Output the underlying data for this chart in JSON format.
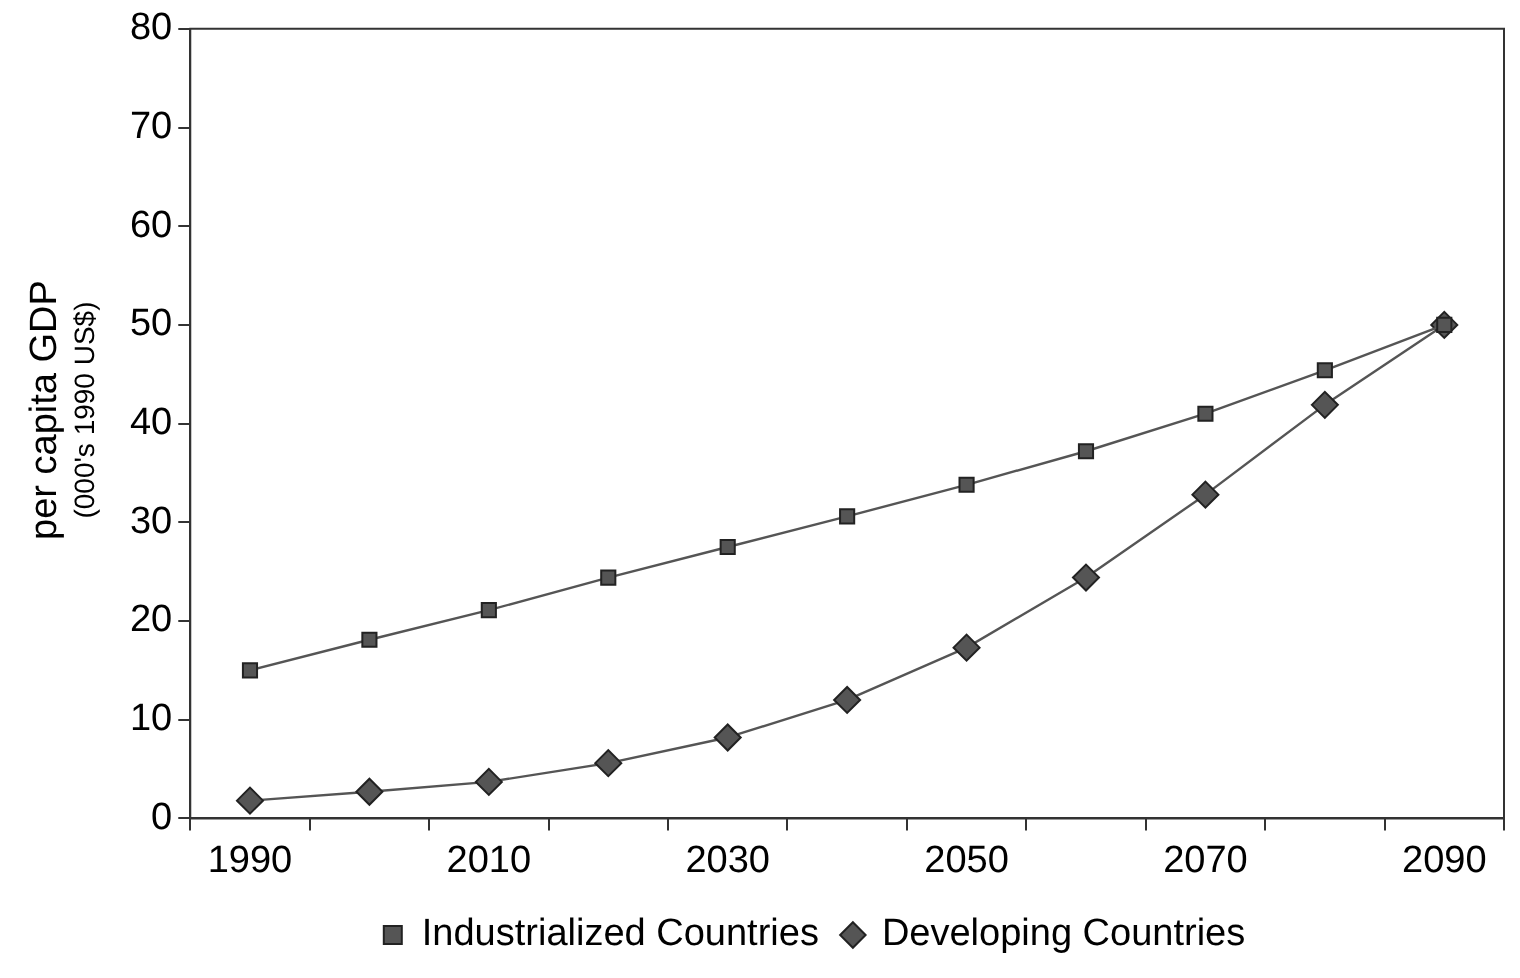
{
  "chart_data": {
    "type": "line",
    "ylabel": "per capita GDP\n(000's 1990 US$)",
    "categories": [
      "1990",
      null,
      "2010",
      null,
      "2030",
      null,
      "2050",
      null,
      "2070",
      null,
      "2090"
    ],
    "series": [
      {
        "name": "Industrialized Countries",
        "color": "#555555",
        "marker": "square",
        "values": [
          15.0,
          18.1,
          21.1,
          24.4,
          27.5,
          30.6,
          33.8,
          37.2,
          41.0,
          45.4,
          50.0
        ]
      },
      {
        "name": "Developing Countries",
        "color": "#555555",
        "marker": "diamond",
        "values": [
          1.8,
          2.7,
          3.7,
          5.6,
          8.2,
          12.0,
          17.3,
          24.4,
          32.8,
          41.9,
          50.0
        ]
      }
    ],
    "ylim": [
      0,
      80
    ],
    "yticks": [
      0,
      10,
      20,
      30,
      40,
      50,
      60,
      70,
      80
    ],
    "grid": false,
    "legend": "bottom",
    "line_style": "solid"
  }
}
